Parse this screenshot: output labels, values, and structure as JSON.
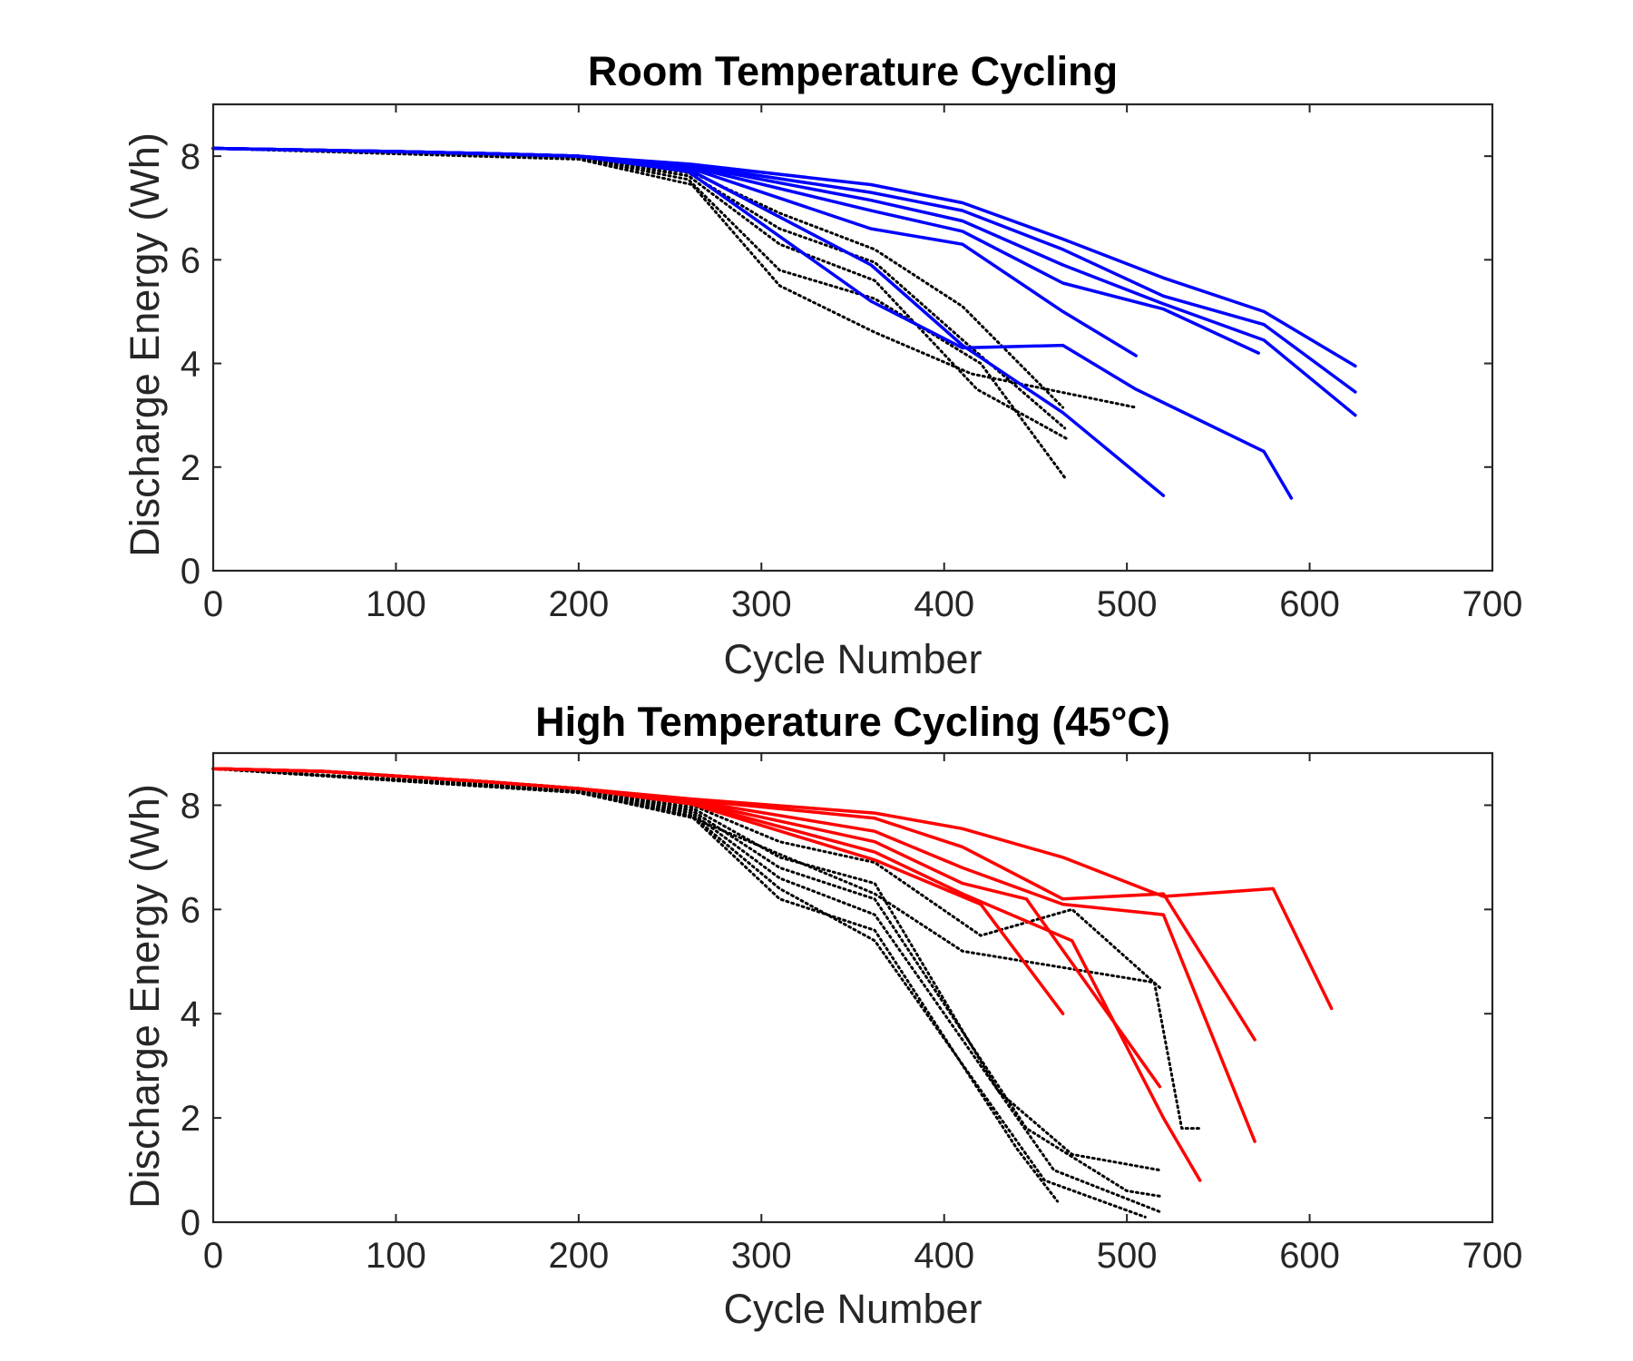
{
  "colors": {
    "room_series": "#0000ff",
    "high_series": "#ff0000",
    "dotted_series": "#000000",
    "axes": "#262626"
  },
  "chart_data": [
    {
      "id": "room",
      "type": "line",
      "title": "Room Temperature Cycling",
      "xlabel": "Cycle Number",
      "ylabel": "Discharge Energy (Wh)",
      "xlim": [
        0,
        700
      ],
      "ylim": [
        0,
        9
      ],
      "xticks": [
        0,
        100,
        200,
        300,
        400,
        500,
        600,
        700
      ],
      "yticks": [
        0,
        2,
        4,
        6,
        8
      ],
      "grid": false,
      "legend": "none",
      "colored_series": [
        {
          "points": [
            [
              0,
              8.15
            ],
            [
              50,
              8.12
            ],
            [
              100,
              8.09
            ],
            [
              150,
              8.05
            ],
            [
              200,
              8.0
            ],
            [
              260,
              7.85
            ],
            [
              360,
              7.45
            ],
            [
              410,
              7.1
            ],
            [
              465,
              6.4
            ],
            [
              520,
              5.65
            ],
            [
              575,
              5.0
            ],
            [
              625,
              3.95
            ]
          ]
        },
        {
          "points": [
            [
              0,
              8.15
            ],
            [
              50,
              8.12
            ],
            [
              100,
              8.09
            ],
            [
              150,
              8.05
            ],
            [
              200,
              8.0
            ],
            [
              260,
              7.83
            ],
            [
              360,
              7.3
            ],
            [
              410,
              6.95
            ],
            [
              465,
              6.2
            ],
            [
              520,
              5.3
            ],
            [
              575,
              4.75
            ],
            [
              625,
              3.45
            ]
          ]
        },
        {
          "points": [
            [
              0,
              8.15
            ],
            [
              50,
              8.12
            ],
            [
              100,
              8.09
            ],
            [
              150,
              8.05
            ],
            [
              200,
              8.0
            ],
            [
              260,
              7.82
            ],
            [
              360,
              7.15
            ],
            [
              410,
              6.75
            ],
            [
              465,
              5.9
            ],
            [
              520,
              5.15
            ],
            [
              575,
              4.45
            ],
            [
              625,
              3.0
            ]
          ]
        },
        {
          "points": [
            [
              0,
              8.15
            ],
            [
              50,
              8.12
            ],
            [
              100,
              8.09
            ],
            [
              150,
              8.05
            ],
            [
              200,
              8.0
            ],
            [
              260,
              7.8
            ],
            [
              360,
              6.95
            ],
            [
              410,
              6.55
            ],
            [
              465,
              5.55
            ],
            [
              520,
              5.05
            ],
            [
              572,
              4.2
            ]
          ]
        },
        {
          "points": [
            [
              0,
              8.15
            ],
            [
              50,
              8.12
            ],
            [
              100,
              8.09
            ],
            [
              150,
              8.05
            ],
            [
              200,
              8.0
            ],
            [
              260,
              7.78
            ],
            [
              360,
              6.6
            ],
            [
              410,
              6.3
            ],
            [
              465,
              5.0
            ],
            [
              505,
              4.15
            ]
          ]
        },
        {
          "points": [
            [
              0,
              8.15
            ],
            [
              50,
              8.12
            ],
            [
              100,
              8.09
            ],
            [
              150,
              8.05
            ],
            [
              200,
              8.0
            ],
            [
              260,
              7.75
            ],
            [
              360,
              5.9
            ],
            [
              410,
              4.35
            ],
            [
              465,
              3.05
            ],
            [
              520,
              1.45
            ]
          ]
        },
        {
          "points": [
            [
              0,
              8.15
            ],
            [
              50,
              8.12
            ],
            [
              100,
              8.09
            ],
            [
              150,
              8.05
            ],
            [
              200,
              8.0
            ],
            [
              260,
              7.7
            ],
            [
              360,
              5.2
            ],
            [
              410,
              4.3
            ],
            [
              465,
              4.35
            ],
            [
              505,
              3.5
            ],
            [
              575,
              2.3
            ],
            [
              590,
              1.4
            ]
          ]
        }
      ],
      "dotted_series": [
        {
          "points": [
            [
              0,
              8.15
            ],
            [
              200,
              7.98
            ],
            [
              260,
              7.72
            ],
            [
              310,
              6.9
            ],
            [
              362,
              6.2
            ],
            [
              410,
              5.1
            ],
            [
              465,
              3.15
            ]
          ]
        },
        {
          "points": [
            [
              0,
              8.15
            ],
            [
              200,
              7.98
            ],
            [
              260,
              7.68
            ],
            [
              310,
              6.6
            ],
            [
              362,
              5.95
            ],
            [
              415,
              4.3
            ],
            [
              466,
              2.75
            ]
          ]
        },
        {
          "points": [
            [
              0,
              8.15
            ],
            [
              200,
              7.97
            ],
            [
              260,
              7.62
            ],
            [
              310,
              6.3
            ],
            [
              362,
              5.6
            ],
            [
              418,
              3.5
            ],
            [
              467,
              2.55
            ]
          ]
        },
        {
          "points": [
            [
              0,
              8.15
            ],
            [
              200,
              7.96
            ],
            [
              260,
              7.55
            ],
            [
              310,
              5.8
            ],
            [
              362,
              5.25
            ],
            [
              420,
              4.0
            ],
            [
              467,
              1.75
            ]
          ]
        },
        {
          "points": [
            [
              0,
              8.15
            ],
            [
              200,
              7.94
            ],
            [
              262,
              7.45
            ],
            [
              310,
              5.5
            ],
            [
              362,
              4.6
            ],
            [
              415,
              3.8
            ],
            [
              505,
              3.15
            ]
          ]
        }
      ]
    },
    {
      "id": "high",
      "type": "line",
      "title": "High Temperature Cycling (45°C)",
      "xlabel": "Cycle Number",
      "ylabel": "Discharge Energy (Wh)",
      "xlim": [
        0,
        700
      ],
      "ylim": [
        0,
        9
      ],
      "xticks": [
        0,
        100,
        200,
        300,
        400,
        500,
        600,
        700
      ],
      "yticks": [
        0,
        2,
        4,
        6,
        8
      ],
      "grid": false,
      "legend": "none",
      "colored_series": [
        {
          "points": [
            [
              0,
              8.7
            ],
            [
              60,
              8.65
            ],
            [
              150,
              8.45
            ],
            [
              200,
              8.32
            ],
            [
              262,
              8.12
            ],
            [
              362,
              7.85
            ],
            [
              410,
              7.55
            ],
            [
              465,
              7.0
            ],
            [
              520,
              6.25
            ],
            [
              580,
              6.4
            ],
            [
              612,
              4.1
            ]
          ]
        },
        {
          "points": [
            [
              0,
              8.7
            ],
            [
              60,
              8.65
            ],
            [
              150,
              8.45
            ],
            [
              200,
              8.32
            ],
            [
              262,
              8.1
            ],
            [
              362,
              7.75
            ],
            [
              410,
              7.2
            ],
            [
              465,
              6.2
            ],
            [
              520,
              6.3
            ],
            [
              570,
              3.5
            ]
          ]
        },
        {
          "points": [
            [
              0,
              8.7
            ],
            [
              60,
              8.65
            ],
            [
              150,
              8.45
            ],
            [
              200,
              8.32
            ],
            [
              262,
              8.08
            ],
            [
              362,
              7.5
            ],
            [
              410,
              6.8
            ],
            [
              465,
              6.1
            ],
            [
              520,
              5.9
            ],
            [
              570,
              1.55
            ]
          ]
        },
        {
          "points": [
            [
              0,
              8.7
            ],
            [
              60,
              8.65
            ],
            [
              150,
              8.45
            ],
            [
              200,
              8.32
            ],
            [
              262,
              8.06
            ],
            [
              362,
              7.3
            ],
            [
              410,
              6.5
            ],
            [
              445,
              6.2
            ],
            [
              518,
              2.6
            ]
          ]
        },
        {
          "points": [
            [
              0,
              8.7
            ],
            [
              60,
              8.65
            ],
            [
              150,
              8.45
            ],
            [
              200,
              8.32
            ],
            [
              262,
              8.04
            ],
            [
              362,
              7.1
            ],
            [
              410,
              6.3
            ],
            [
              470,
              5.4
            ],
            [
              520,
              2.0
            ],
            [
              540,
              0.8
            ]
          ]
        },
        {
          "points": [
            [
              0,
              8.7
            ],
            [
              60,
              8.65
            ],
            [
              150,
              8.45
            ],
            [
              200,
              8.32
            ],
            [
              262,
              8.02
            ],
            [
              362,
              6.95
            ],
            [
              420,
              6.1
            ],
            [
              465,
              4.0
            ]
          ]
        }
      ],
      "dotted_series": [
        {
          "points": [
            [
              0,
              8.7
            ],
            [
              200,
              8.3
            ],
            [
              262,
              8.0
            ],
            [
              310,
              7.3
            ],
            [
              362,
              6.9
            ],
            [
              420,
              5.5
            ],
            [
              470,
              6.0
            ],
            [
              518,
              4.5
            ]
          ]
        },
        {
          "points": [
            [
              0,
              8.7
            ],
            [
              200,
              8.28
            ],
            [
              262,
              7.95
            ],
            [
              310,
              7.0
            ],
            [
              362,
              6.5
            ],
            [
              430,
              2.5
            ],
            [
              470,
              1.3
            ],
            [
              518,
              1.0
            ]
          ]
        },
        {
          "points": [
            [
              0,
              8.7
            ],
            [
              200,
              8.27
            ],
            [
              262,
              7.9
            ],
            [
              310,
              6.8
            ],
            [
              362,
              6.2
            ],
            [
              445,
              1.8
            ],
            [
              500,
              0.6
            ],
            [
              518,
              0.5
            ]
          ]
        },
        {
          "points": [
            [
              0,
              8.7
            ],
            [
              200,
              8.26
            ],
            [
              262,
              7.85
            ],
            [
              310,
              6.6
            ],
            [
              362,
              5.9
            ],
            [
              460,
              1.0
            ],
            [
              518,
              0.2
            ]
          ]
        },
        {
          "points": [
            [
              0,
              8.7
            ],
            [
              200,
              8.25
            ],
            [
              262,
              7.8
            ],
            [
              310,
              6.4
            ],
            [
              362,
              5.4
            ],
            [
              455,
              0.8
            ],
            [
              510,
              0.1
            ]
          ]
        },
        {
          "points": [
            [
              0,
              8.7
            ],
            [
              200,
              8.25
            ],
            [
              262,
              7.78
            ],
            [
              310,
              6.2
            ],
            [
              362,
              5.6
            ],
            [
              440,
              1.4
            ],
            [
              462,
              0.4
            ]
          ]
        },
        {
          "points": [
            [
              0,
              8.7
            ],
            [
              200,
              8.24
            ],
            [
              262,
              7.76
            ],
            [
              362,
              6.3
            ],
            [
              410,
              5.2
            ],
            [
              515,
              4.6
            ],
            [
              530,
              1.8
            ],
            [
              540,
              1.8
            ]
          ]
        }
      ]
    }
  ]
}
